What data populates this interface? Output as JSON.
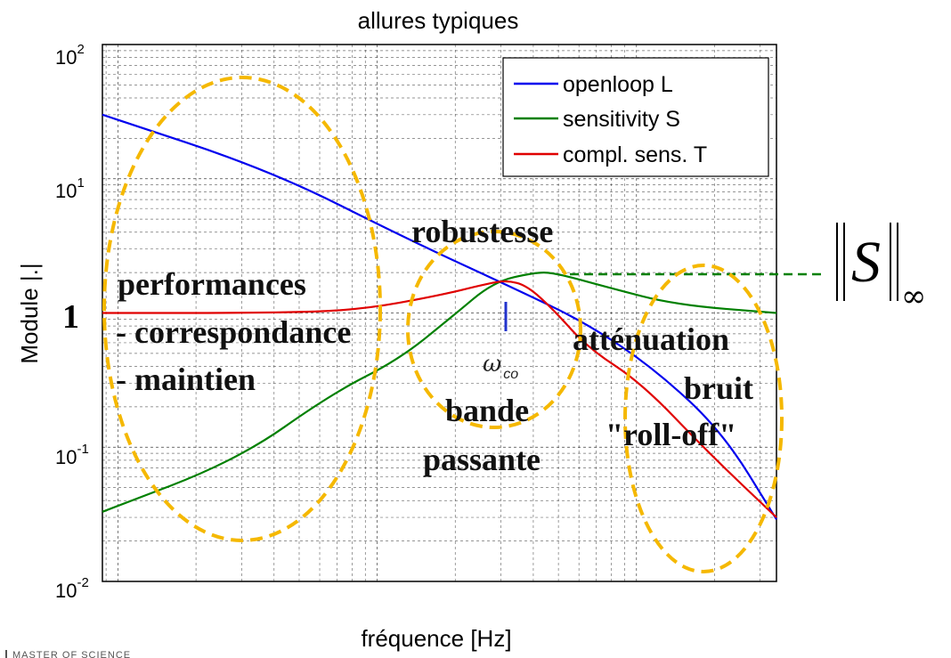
{
  "chart_data": {
    "type": "line",
    "title": "allures typiques",
    "xlabel": "fréquence  [Hz]",
    "ylabel": "Module |.|",
    "yscale": "log",
    "ylim": [
      0.01,
      100
    ],
    "xscale": "log",
    "grid": true,
    "legend_position": "top-right",
    "y_ticks": [
      {
        "base": "10",
        "exp": "2",
        "value": 100
      },
      {
        "base": "10",
        "exp": "1",
        "value": 10
      },
      {
        "base": "10",
        "exp": "-1",
        "value": 0.1
      },
      {
        "base": "10",
        "exp": "-2",
        "value": 0.01
      }
    ],
    "one_label": "1",
    "series": [
      {
        "name": "openloop L",
        "color": "#0000ee",
        "points": [
          [
            0.0,
            30
          ],
          [
            0.25,
            11.5
          ],
          [
            0.45,
            3.6
          ],
          [
            0.62,
            1.45
          ],
          [
            0.72,
            0.83
          ],
          [
            0.82,
            0.38
          ],
          [
            0.92,
            0.13
          ],
          [
            1.0,
            0.029
          ]
        ]
      },
      {
        "name": "sensitivity S",
        "color": "#008000",
        "points": [
          [
            0.0,
            0.033
          ],
          [
            0.2,
            0.08
          ],
          [
            0.34,
            0.25
          ],
          [
            0.44,
            0.45
          ],
          [
            0.52,
            0.95
          ],
          [
            0.58,
            1.7
          ],
          [
            0.64,
            2.0
          ],
          [
            0.67,
            2.0
          ],
          [
            0.75,
            1.55
          ],
          [
            0.85,
            1.15
          ],
          [
            1.0,
            1.0
          ]
        ]
      },
      {
        "name": "compl. sens. T",
        "color": "#e00000",
        "points": [
          [
            0.0,
            1.0
          ],
          [
            0.25,
            1.0
          ],
          [
            0.38,
            1.05
          ],
          [
            0.5,
            1.35
          ],
          [
            0.57,
            1.65
          ],
          [
            0.6,
            1.75
          ],
          [
            0.63,
            1.6
          ],
          [
            0.67,
            1.05
          ],
          [
            0.72,
            0.55
          ],
          [
            0.8,
            0.3
          ],
          [
            0.9,
            0.09
          ],
          [
            1.0,
            0.03
          ]
        ]
      }
    ]
  },
  "annotations": {
    "robustesse": "robustesse",
    "perf1": "performances",
    "perf2": "- correspondance",
    "perf3": "- maintien",
    "omega": "ω",
    "omega_sub": "co",
    "bande1": "bande",
    "bande2": "passante",
    "att1": "atténuation",
    "att2": "bruit",
    "att3": "\"roll-off\"",
    "norm_S": "S",
    "norm_inf": "∞"
  },
  "footer": "MASTER OF SCIENCE",
  "colors": {
    "openloop": "#0000ee",
    "sensitivity": "#008000",
    "complementary": "#e00000",
    "ellipse": "#f5b800"
  }
}
